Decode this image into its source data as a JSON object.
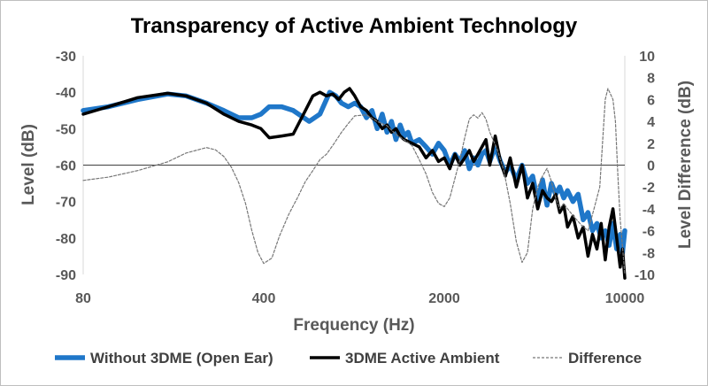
{
  "chart_data": {
    "type": "line",
    "title": "Transparency of Active Ambient Technology",
    "xlabel": "Frequency (Hz)",
    "ylabel": "Level (dB)",
    "y2label": "Level Difference (dB)",
    "xscale": "log",
    "xlim": [
      80,
      10000
    ],
    "ylim": [
      -90,
      -30
    ],
    "y2lim": [
      -10,
      10
    ],
    "x_ticks": [
      80,
      400,
      2000,
      10000
    ],
    "x_tick_labels": [
      "80",
      "400",
      "2000",
      "10000"
    ],
    "y_ticks": [
      -30,
      -40,
      -50,
      -60,
      -70,
      -80,
      -90
    ],
    "y_tick_labels": [
      "-30",
      "-40",
      "-50",
      "-60",
      "-70",
      "-80",
      "-90"
    ],
    "y2_ticks": [
      10,
      8,
      6,
      4,
      2,
      0,
      -2,
      -4,
      -6,
      -8,
      -10
    ],
    "y2_tick_labels": [
      "10",
      "8",
      "6",
      "4",
      "2",
      "0",
      "-2",
      "-4",
      "-6",
      "-8",
      "-10"
    ],
    "reference_line_y": -60,
    "legend_position": "bottom",
    "series": [
      {
        "name": "Without 3DME (Open Ear)",
        "axis": "left",
        "color": "#1f77c9",
        "style": "solid",
        "x": [
          80,
          100,
          130,
          170,
          200,
          240,
          280,
          320,
          360,
          390,
          420,
          470,
          520,
          600,
          660,
          720,
          760,
          800,
          850,
          900,
          950,
          1000,
          1050,
          1100,
          1150,
          1200,
          1250,
          1300,
          1350,
          1400,
          1450,
          1500,
          1600,
          1700,
          1800,
          1900,
          2000,
          2100,
          2200,
          2300,
          2400,
          2500,
          2600,
          2700,
          2800,
          2900,
          3000,
          3150,
          3300,
          3450,
          3600,
          3800,
          4000,
          4200,
          4400,
          4600,
          4800,
          5000,
          5200,
          5400,
          5600,
          5800,
          6000,
          6300,
          6600,
          6900,
          7200,
          7500,
          7800,
          8100,
          8400,
          8700,
          9000,
          9300,
          9600,
          9800,
          10000
        ],
        "values": [
          -45,
          -44,
          -42,
          -40.5,
          -41,
          -43,
          -45,
          -47,
          -47,
          -46,
          -44,
          -44,
          -45,
          -48,
          -46,
          -40,
          -41,
          -43,
          -44,
          -43,
          -44,
          -47,
          -45,
          -50,
          -46,
          -51,
          -48,
          -53,
          -49,
          -52,
          -51,
          -54,
          -53,
          -55,
          -57,
          -54,
          -56,
          -60,
          -57,
          -59,
          -56,
          -61,
          -58,
          -60,
          -57,
          -56,
          -59,
          -55,
          -59,
          -62,
          -60,
          -64,
          -60,
          -65,
          -63,
          -70,
          -64,
          -71,
          -65,
          -68,
          -66,
          -69,
          -67,
          -70,
          -68,
          -75,
          -73,
          -78,
          -76,
          -80,
          -78,
          -82,
          -76,
          -83,
          -79,
          -84,
          -78
        ]
      },
      {
        "name": "3DME Active Ambient",
        "axis": "left",
        "color": "#000000",
        "style": "solid",
        "x": [
          80,
          100,
          130,
          170,
          200,
          240,
          280,
          320,
          360,
          390,
          420,
          470,
          520,
          580,
          620,
          660,
          700,
          740,
          780,
          820,
          860,
          900,
          950,
          1000,
          1050,
          1100,
          1150,
          1200,
          1250,
          1300,
          1350,
          1400,
          1500,
          1600,
          1700,
          1800,
          1900,
          2000,
          2100,
          2200,
          2300,
          2400,
          2500,
          2600,
          2700,
          2800,
          2900,
          3000,
          3150,
          3300,
          3450,
          3600,
          3800,
          4000,
          4200,
          4400,
          4600,
          4800,
          5000,
          5200,
          5400,
          5600,
          5800,
          6000,
          6300,
          6600,
          6900,
          7200,
          7500,
          7800,
          8100,
          8400,
          8700,
          9000,
          9300,
          9600,
          9800,
          10000
        ],
        "values": [
          -46,
          -44,
          -41.5,
          -40.3,
          -41,
          -43,
          -46,
          -48,
          -49,
          -50,
          -52.5,
          -52,
          -51.5,
          -45,
          -41,
          -40,
          -41,
          -40.5,
          -42,
          -40,
          -39,
          -41,
          -44,
          -45,
          -47,
          -48,
          -50,
          -49,
          -51,
          -50,
          -52,
          -53,
          -54,
          -55,
          -58,
          -56,
          -59,
          -58,
          -61,
          -57,
          -60,
          -58,
          -56,
          -59,
          -57,
          -55,
          -53,
          -60,
          -52,
          -59,
          -63,
          -58,
          -66,
          -60,
          -69,
          -65,
          -72,
          -67,
          -69,
          -70,
          -68,
          -73,
          -71,
          -77,
          -74,
          -80,
          -77,
          -85,
          -79,
          -83,
          -76,
          -86,
          -77,
          -72,
          -80,
          -88,
          -83,
          -91
        ]
      },
      {
        "name": "Difference",
        "axis": "right",
        "color": "#777777",
        "style": "dashed",
        "x": [
          80,
          100,
          130,
          170,
          200,
          240,
          260,
          280,
          300,
          320,
          340,
          360,
          380,
          400,
          430,
          460,
          500,
          540,
          580,
          620,
          660,
          700,
          750,
          800,
          850,
          900,
          1000,
          1100,
          1200,
          1300,
          1400,
          1500,
          1600,
          1700,
          1800,
          1900,
          2000,
          2100,
          2200,
          2300,
          2400,
          2500,
          2600,
          2700,
          2800,
          2900,
          3000,
          3200,
          3400,
          3600,
          3800,
          4000,
          4200,
          4400,
          4600,
          4800,
          5000,
          5200,
          5400,
          5600,
          5800,
          6000,
          6400,
          6800,
          7200,
          7600,
          8000,
          8200,
          8400,
          8600,
          8800,
          9000,
          9200,
          9400,
          9600,
          9800,
          10000
        ],
        "values": [
          -1.4,
          -1.1,
          -0.5,
          0.3,
          1.1,
          1.6,
          1.4,
          0.8,
          -0.2,
          -1.6,
          -3.5,
          -6,
          -8,
          -9,
          -8.5,
          -6.5,
          -4.5,
          -3,
          -1.5,
          -0.5,
          0.5,
          1,
          2,
          3,
          3.8,
          4.5,
          4.6,
          4,
          3.6,
          2.8,
          2.3,
          1.8,
          0.5,
          -0.8,
          -2.5,
          -3.5,
          -3.8,
          -3,
          -1.2,
          0.5,
          2.5,
          4.2,
          4.6,
          4.3,
          4.8,
          4.2,
          3,
          1.5,
          -0.5,
          -3.5,
          -7,
          -8.9,
          -8,
          -4,
          -2,
          -1,
          -0.3,
          -1.5,
          -3,
          -4,
          -3.5,
          -4,
          -4.8,
          -5.5,
          -6,
          -4,
          -2,
          2,
          6,
          7,
          6.5,
          6,
          4,
          -1,
          -5,
          -7.5,
          -10
        ]
      }
    ]
  }
}
